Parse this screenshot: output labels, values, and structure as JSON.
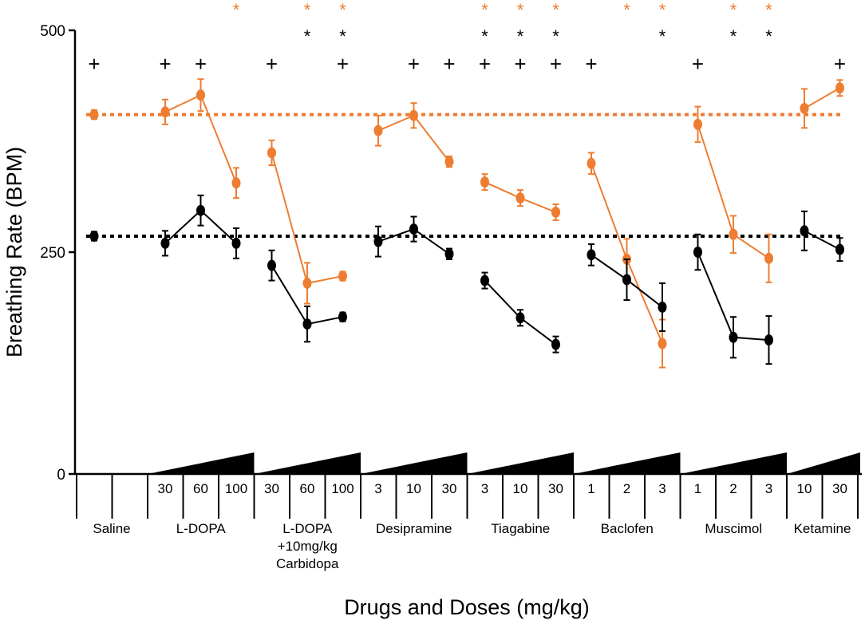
{
  "chart_data": {
    "type": "line",
    "ylabel": "Breathing Rate (BPM)",
    "xlabel": "Drugs and Doses (mg/kg)",
    "ylim": [
      0,
      500
    ],
    "yticks": [
      0,
      250,
      500
    ],
    "colors": {
      "black": "#000000",
      "orange": "#ee7d31"
    },
    "baselines": {
      "black": 268,
      "orange": 405
    },
    "groups": [
      {
        "drug": [
          "Saline"
        ],
        "doses": [
          ""
        ],
        "ramp": false,
        "black": {
          "values": [
            268
          ],
          "errors": [
            5
          ]
        },
        "orange": {
          "values": [
            405
          ],
          "errors": [
            5
          ]
        },
        "plus": [
          true
        ],
        "star_orange": [
          false
        ],
        "star_black": [
          false
        ]
      },
      {
        "drug": [
          "L-DOPA"
        ],
        "doses": [
          "30",
          "60",
          "100"
        ],
        "ramp": true,
        "black": {
          "values": [
            260,
            297,
            260
          ],
          "errors": [
            14,
            17,
            17
          ]
        },
        "orange": {
          "values": [
            408,
            427,
            328
          ],
          "errors": [
            14,
            18,
            17
          ]
        },
        "plus": [
          true,
          true,
          false
        ],
        "star_orange": [
          false,
          false,
          true
        ],
        "star_black": [
          false,
          false,
          false
        ]
      },
      {
        "drug": [
          "L-DOPA",
          "+10mg/kg",
          "Carbidopa"
        ],
        "doses": [
          "30",
          "60",
          "100"
        ],
        "ramp": true,
        "black": {
          "values": [
            235,
            169,
            177
          ],
          "errors": [
            17,
            20,
            5
          ]
        },
        "orange": {
          "values": [
            362,
            215,
            223
          ],
          "errors": [
            14,
            23,
            5
          ]
        },
        "plus": [
          true,
          false,
          true
        ],
        "star_orange": [
          false,
          true,
          true
        ],
        "star_black": [
          false,
          true,
          true
        ]
      },
      {
        "drug": [
          "Desipramine"
        ],
        "doses": [
          "3",
          "10",
          "30"
        ],
        "ramp": true,
        "black": {
          "values": [
            262,
            276,
            248
          ],
          "errors": [
            17,
            14,
            6
          ]
        },
        "orange": {
          "values": [
            387,
            404,
            352
          ],
          "errors": [
            17,
            14,
            6
          ]
        },
        "plus": [
          false,
          true,
          true
        ],
        "star_orange": [
          false,
          false,
          false
        ],
        "star_black": [
          false,
          false,
          false
        ]
      },
      {
        "drug": [
          "Tiagabine"
        ],
        "doses": [
          "3",
          "10",
          "30"
        ],
        "ramp": true,
        "black": {
          "values": [
            218,
            176,
            146
          ],
          "errors": [
            9,
            9,
            9
          ]
        },
        "orange": {
          "values": [
            329,
            311,
            295
          ],
          "errors": [
            9,
            9,
            9
          ]
        },
        "plus": [
          true,
          true,
          true
        ],
        "star_orange": [
          true,
          true,
          true
        ],
        "star_black": [
          true,
          true,
          true
        ]
      },
      {
        "drug": [
          "Baclofen"
        ],
        "doses": [
          "1",
          "2",
          "3"
        ],
        "ramp": true,
        "black": {
          "values": [
            247,
            219,
            188
          ],
          "errors": [
            12,
            23,
            27
          ]
        },
        "orange": {
          "values": [
            350,
            242,
            147
          ],
          "errors": [
            12,
            23,
            27
          ]
        },
        "plus": [
          true,
          false,
          false
        ],
        "star_orange": [
          false,
          true,
          true
        ],
        "star_black": [
          false,
          false,
          true
        ]
      },
      {
        "drug": [
          "Muscimol"
        ],
        "doses": [
          "1",
          "2",
          "3"
        ],
        "ramp": true,
        "black": {
          "values": [
            250,
            154,
            151
          ],
          "errors": [
            20,
            23,
            27
          ]
        },
        "orange": {
          "values": [
            394,
            270,
            243
          ],
          "errors": [
            20,
            21,
            27
          ]
        },
        "plus": [
          true,
          false,
          false
        ],
        "star_orange": [
          false,
          true,
          true
        ],
        "star_black": [
          false,
          true,
          true
        ]
      },
      {
        "drug": [
          "Ketamine"
        ],
        "doses": [
          "10",
          "30"
        ],
        "ramp": true,
        "black": {
          "values": [
            274,
            253
          ],
          "errors": [
            22,
            13
          ]
        },
        "orange": {
          "values": [
            412,
            435
          ],
          "errors": [
            22,
            9
          ]
        },
        "plus": [
          false,
          true
        ],
        "star_orange": [
          false,
          false
        ],
        "star_black": [
          false,
          false
        ]
      }
    ],
    "annotations": {
      "plus": "+",
      "star": "*"
    }
  }
}
